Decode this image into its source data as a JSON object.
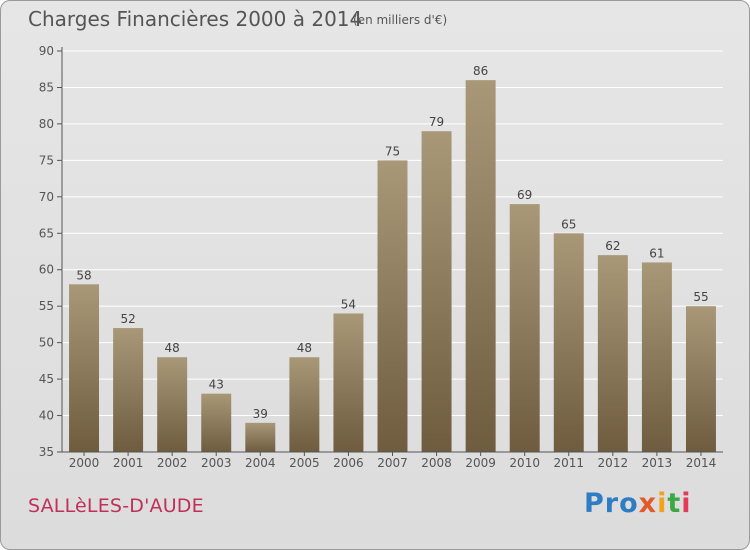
{
  "header": {
    "title": "Charges Financières 2000 à 2014",
    "unit_note": "(en milliers d'€)"
  },
  "footer": {
    "commune": "SALLèLES-D'AUDE",
    "logo_parts": [
      "Pro",
      "x",
      "i",
      "t",
      "i"
    ]
  },
  "colors": {
    "bar_top": "#a89878",
    "bar_bottom": "#6f5c3f",
    "commune": "#c0305a",
    "text": "#555555"
  },
  "chart_data": {
    "type": "bar",
    "title": "Charges Financières 2000 à 2014",
    "subtitle": "(en milliers d'€)",
    "categories": [
      "2000",
      "2001",
      "2002",
      "2003",
      "2004",
      "2005",
      "2006",
      "2007",
      "2008",
      "2009",
      "2010",
      "2011",
      "2012",
      "2013",
      "2014"
    ],
    "values": [
      58,
      52,
      48,
      43,
      39,
      48,
      54,
      75,
      79,
      86,
      69,
      65,
      62,
      61,
      55
    ],
    "ylim": [
      35,
      90
    ],
    "yticks": [
      35,
      40,
      45,
      50,
      55,
      60,
      65,
      70,
      75,
      80,
      85,
      90
    ],
    "grid": true,
    "xlabel": "",
    "ylabel": ""
  }
}
